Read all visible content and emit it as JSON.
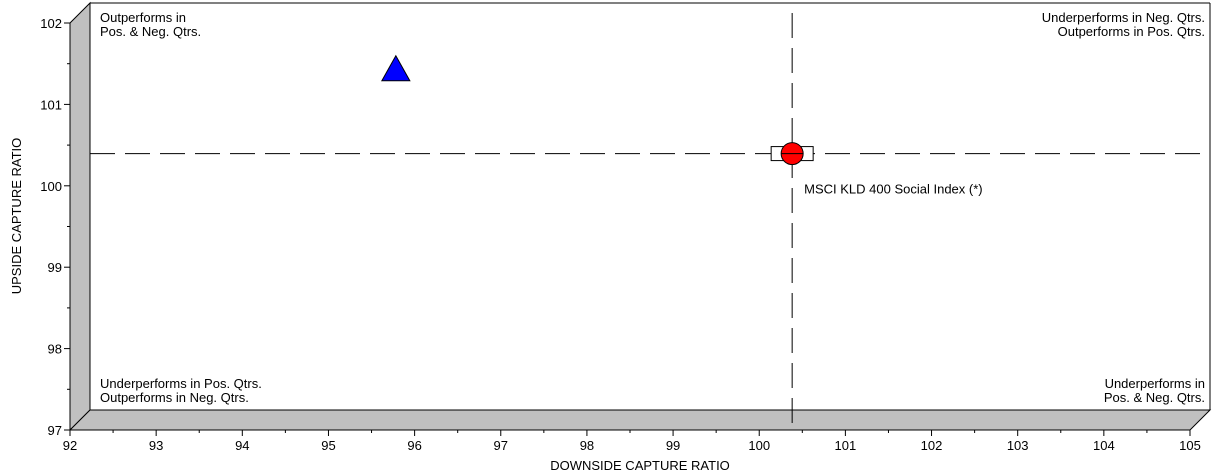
{
  "chart_data": {
    "type": "scatter",
    "title": "",
    "xlabel": "DOWNSIDE CAPTURE RATIO",
    "ylabel": "UPSIDE CAPTURE RATIO",
    "xlim": [
      92,
      105
    ],
    "ylim": [
      97,
      102
    ],
    "x_ticks": [
      "92",
      "93",
      "94",
      "95",
      "96",
      "97",
      "98",
      "99",
      "100",
      "101",
      "102",
      "103",
      "104",
      "105"
    ],
    "y_ticks": [
      "97",
      "98",
      "99",
      "100",
      "101",
      "102"
    ],
    "grid": false,
    "reference_lines": {
      "x": 100.15,
      "y": 100.15
    },
    "quadrant_labels": {
      "top_left": [
        "Outperforms in",
        "Pos. & Neg. Qtrs."
      ],
      "top_right": [
        "Underperforms in Neg. Qtrs.",
        "Outperforms in Pos. Qtrs."
      ],
      "bottom_left": [
        "Underperforms in Pos. Qtrs.",
        "Outperforms in Neg. Qtrs."
      ],
      "bottom_right": [
        "Underperforms in",
        "Pos. & Neg. Qtrs."
      ]
    },
    "points": [
      {
        "x": 95.55,
        "y": 101.18,
        "marker": "triangle",
        "color": "#0000ff",
        "label": ""
      },
      {
        "x": 100.15,
        "y": 100.15,
        "marker": "circle",
        "color": "#ff0000",
        "label": "MSCI KLD 400 Social Index (*)"
      }
    ],
    "colors": {
      "floor": "#c0c0c0",
      "wall": "#c0c0c0",
      "reference_line": "#000000"
    }
  }
}
